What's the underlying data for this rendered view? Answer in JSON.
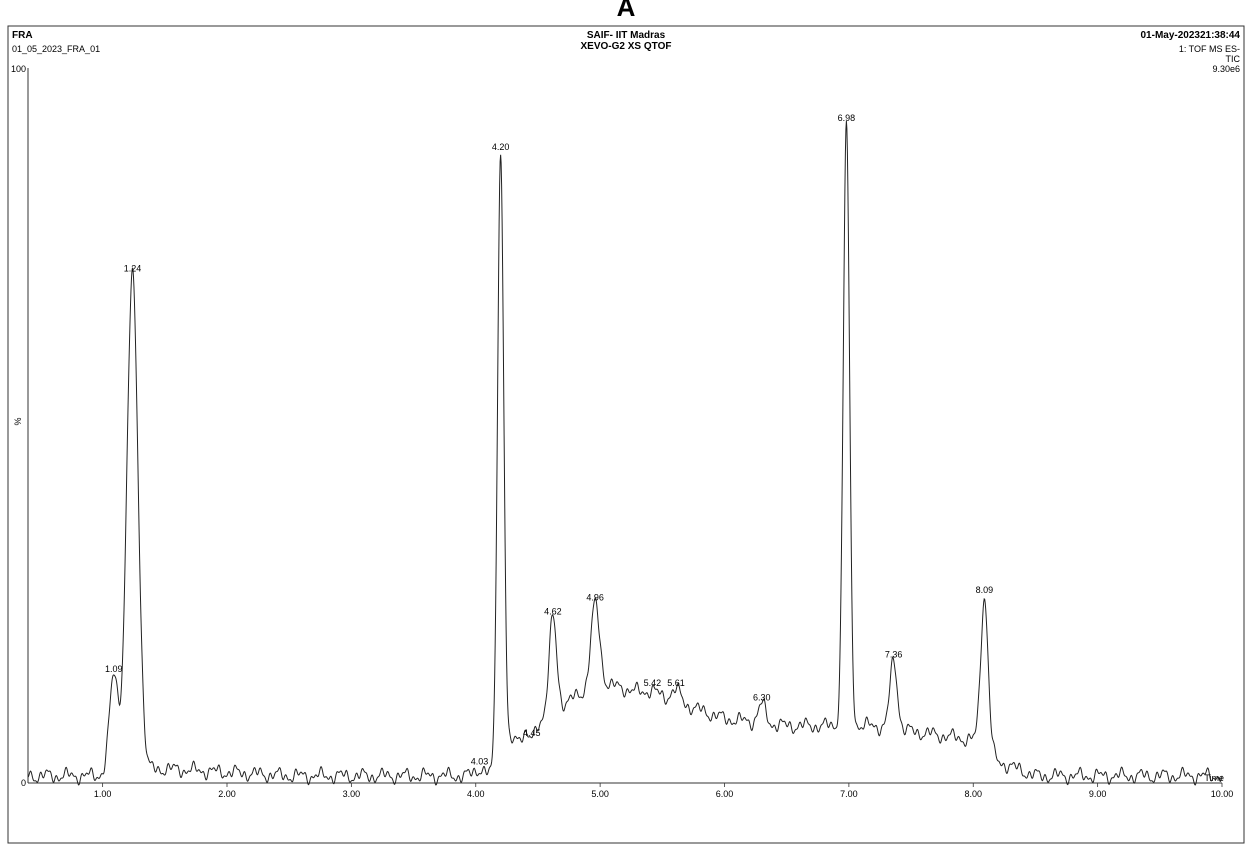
{
  "chart_data": {
    "type": "line",
    "panel_letter": "A",
    "sample_code": "FRA",
    "facility": "SAIF- IIT Madras",
    "instrument": "XEVO-G2 XS QTOF",
    "datetime": "01-May-202321:38:44",
    "file_name": "01_05_2023_FRA_01",
    "scan": "1: TOF MS ES-",
    "trace_type": "TIC",
    "intensity": "9.30e6",
    "ylabel": "%",
    "xlabel": "Time",
    "xlim": [
      0.4,
      10.0
    ],
    "ylim": [
      0,
      100
    ],
    "ytick_labels": [
      "100",
      "0"
    ],
    "xtick_labels": [
      "1.00",
      "2.00",
      "3.00",
      "4.00",
      "5.00",
      "6.00",
      "7.00",
      "8.00",
      "9.00",
      "10.00"
    ],
    "baseline": [
      [
        0.4,
        1
      ],
      [
        0.9,
        1
      ],
      [
        1.5,
        2
      ],
      [
        2.5,
        1
      ],
      [
        3.5,
        1
      ],
      [
        4.2,
        1
      ],
      [
        4.3,
        6
      ],
      [
        4.6,
        10
      ],
      [
        5.0,
        14
      ],
      [
        5.5,
        12
      ],
      [
        6.0,
        9
      ],
      [
        6.5,
        8
      ],
      [
        7.2,
        8
      ],
      [
        7.6,
        7
      ],
      [
        8.0,
        6
      ],
      [
        8.2,
        3
      ],
      [
        8.5,
        1
      ],
      [
        9.0,
        1
      ],
      [
        10.0,
        1
      ]
    ],
    "peaks": [
      {
        "label": "1.09",
        "x": 1.09,
        "y": 15,
        "w": 0.035
      },
      {
        "label": "1.24",
        "x": 1.24,
        "y": 71,
        "w": 0.045
      },
      {
        "label": "4.03",
        "x": 4.03,
        "y": 2,
        "w": 0.04
      },
      {
        "label": "4.20",
        "x": 4.2,
        "y": 88,
        "w": 0.025
      },
      {
        "label": "4.45",
        "x": 4.45,
        "y": 6,
        "w": 0.03
      },
      {
        "label": "4.62",
        "x": 4.62,
        "y": 23,
        "w": 0.03
      },
      {
        "label": "4.96",
        "x": 4.96,
        "y": 25,
        "w": 0.035
      },
      {
        "label": "5.42",
        "x": 5.42,
        "y": 13,
        "w": 0.04
      },
      {
        "label": "5.61",
        "x": 5.61,
        "y": 13,
        "w": 0.04
      },
      {
        "label": "6.30",
        "x": 6.3,
        "y": 11,
        "w": 0.03
      },
      {
        "label": "6.98",
        "x": 6.98,
        "y": 92,
        "w": 0.025
      },
      {
        "label": "7.36",
        "x": 7.36,
        "y": 17,
        "w": 0.03
      },
      {
        "label": "8.09",
        "x": 8.09,
        "y": 26,
        "w": 0.03
      }
    ]
  }
}
